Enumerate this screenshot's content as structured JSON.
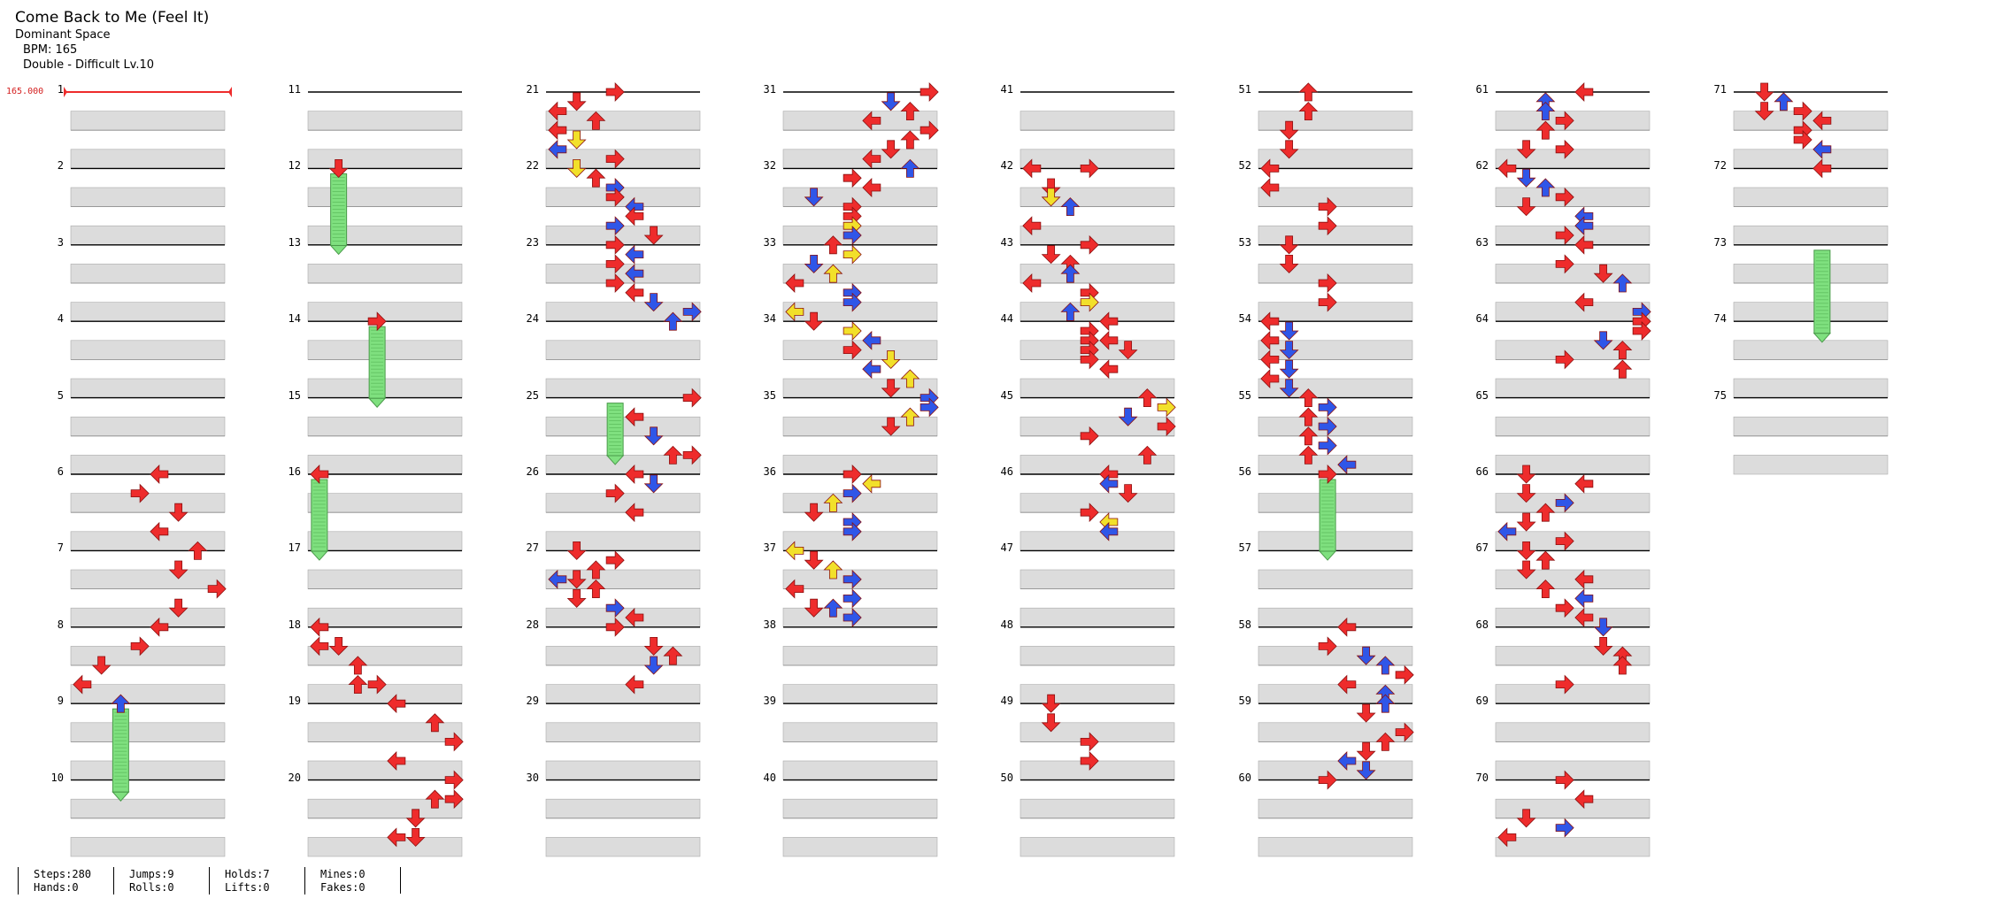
{
  "header": {
    "title": "Come Back to Me (Feel It)",
    "artist": "Dominant Space",
    "bpm": "BPM: 165",
    "difficulty": "Double - Difficult  Lv.10"
  },
  "bpm_change": "165.000",
  "measure_labels": [
    "1",
    "2",
    "3",
    "4",
    "5",
    "6",
    "7",
    "8",
    "9",
    "10",
    "11",
    "12",
    "13",
    "14",
    "15",
    "16",
    "17",
    "18",
    "19",
    "20",
    "21",
    "22",
    "23",
    "24",
    "25",
    "26",
    "27",
    "28",
    "29",
    "30",
    "31",
    "32",
    "33",
    "34",
    "35",
    "36",
    "37",
    "38",
    "39",
    "40",
    "41",
    "42",
    "43",
    "44",
    "45",
    "46",
    "47",
    "48",
    "49",
    "50",
    "51",
    "52",
    "53",
    "54",
    "55",
    "56",
    "57",
    "58",
    "59",
    "60",
    "61",
    "62",
    "63",
    "64",
    "65",
    "66",
    "67",
    "68",
    "69",
    "70",
    "71",
    "72",
    "73",
    "74",
    "75"
  ],
  "colors": {
    "red": "#ee2c2c",
    "blue": "#2f56e8",
    "yellow": "#f2e02a",
    "hold": "#7fe07f",
    "band": "#dcdcdc"
  },
  "stats": {
    "steps": "Steps:280",
    "hands": "Hands:0",
    "jumps": "Jumps:9",
    "rolls": "Rolls:0",
    "holds": "Holds:7",
    "lifts": "Lifts:0",
    "mines": "Mines:0",
    "fakes": "Fakes:0"
  }
}
